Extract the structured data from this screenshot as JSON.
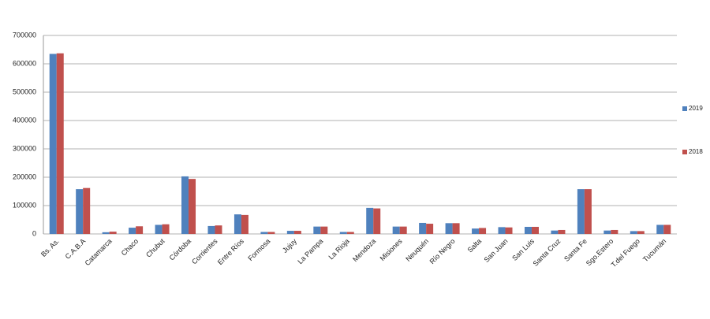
{
  "chart_data": {
    "type": "bar",
    "categories": [
      "Bs. As.",
      "C.A.B.A",
      "Catamarca",
      "Chaco",
      "Chubut",
      "Córdoba",
      "Corrientes",
      "Entre Ríos",
      "Formosa",
      "Jujuy",
      "La Pampa",
      "La Rioja",
      "Mendoza",
      "Misiones",
      "Neuquén",
      "Río Negro",
      "Salta",
      "San Juan",
      "San Luis",
      "Santa Cruz",
      "Santa Fe",
      "Sgo.Estero",
      "T.del Fuego",
      "Tucumán"
    ],
    "series": [
      {
        "name": "2019",
        "color": "#4f81bd",
        "values": [
          635000,
          158000,
          6000,
          22000,
          32000,
          203000,
          28000,
          69000,
          7000,
          11000,
          26000,
          7000,
          92000,
          26000,
          39000,
          38000,
          19000,
          24000,
          25000,
          12000,
          158000,
          12000,
          10000,
          32000
        ]
      },
      {
        "name": "2018",
        "color": "#c0504d",
        "values": [
          637000,
          162000,
          8000,
          27000,
          34000,
          194000,
          30000,
          67000,
          7000,
          11000,
          26000,
          7000,
          90000,
          26000,
          36000,
          38000,
          21000,
          23000,
          25000,
          14000,
          158000,
          14000,
          10000,
          32000
        ]
      }
    ],
    "ylim": [
      0,
      700000
    ],
    "yticks": [
      0,
      100000,
      200000,
      300000,
      400000,
      500000,
      600000,
      700000
    ],
    "grid": true,
    "legend": "right"
  }
}
